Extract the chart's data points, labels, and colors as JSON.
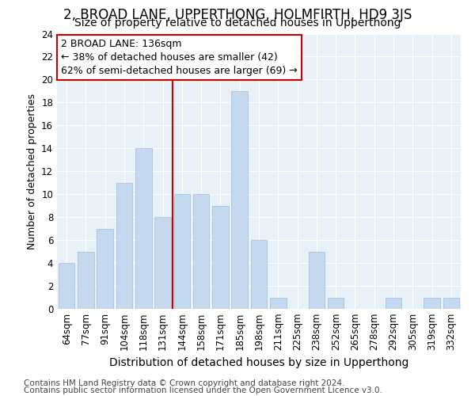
{
  "title": "2, BROAD LANE, UPPERTHONG, HOLMFIRTH, HD9 3JS",
  "subtitle": "Size of property relative to detached houses in Upperthong",
  "xlabel": "Distribution of detached houses by size in Upperthong",
  "ylabel": "Number of detached properties",
  "categories": [
    "64sqm",
    "77sqm",
    "91sqm",
    "104sqm",
    "118sqm",
    "131sqm",
    "144sqm",
    "158sqm",
    "171sqm",
    "185sqm",
    "198sqm",
    "211sqm",
    "225sqm",
    "238sqm",
    "252sqm",
    "265sqm",
    "278sqm",
    "292sqm",
    "305sqm",
    "319sqm",
    "332sqm"
  ],
  "values": [
    4,
    5,
    7,
    11,
    14,
    8,
    10,
    10,
    9,
    19,
    6,
    1,
    0,
    5,
    1,
    0,
    0,
    1,
    0,
    1,
    1
  ],
  "bar_color": "#c5d9ee",
  "bar_edge_color": "#a8c4e0",
  "bar_width": 0.85,
  "vline_color": "#cc0000",
  "vline_x_idx": 5.5,
  "annotation_text": "2 BROAD LANE: 136sqm\n← 38% of detached houses are smaller (42)\n62% of semi-detached houses are larger (69) →",
  "annotation_box_facecolor": "#ffffff",
  "annotation_box_edgecolor": "#cc0000",
  "ylim": [
    0,
    24
  ],
  "yticks": [
    0,
    2,
    4,
    6,
    8,
    10,
    12,
    14,
    16,
    18,
    20,
    22,
    24
  ],
  "plot_bg": "#e8f0f8",
  "grid_color": "#ffffff",
  "footer1": "Contains HM Land Registry data © Crown copyright and database right 2024.",
  "footer2": "Contains public sector information licensed under the Open Government Licence v3.0.",
  "title_fontsize": 12,
  "subtitle_fontsize": 10,
  "xlabel_fontsize": 10,
  "ylabel_fontsize": 9,
  "tick_fontsize": 8.5,
  "annotation_fontsize": 9,
  "footer_fontsize": 7.5
}
